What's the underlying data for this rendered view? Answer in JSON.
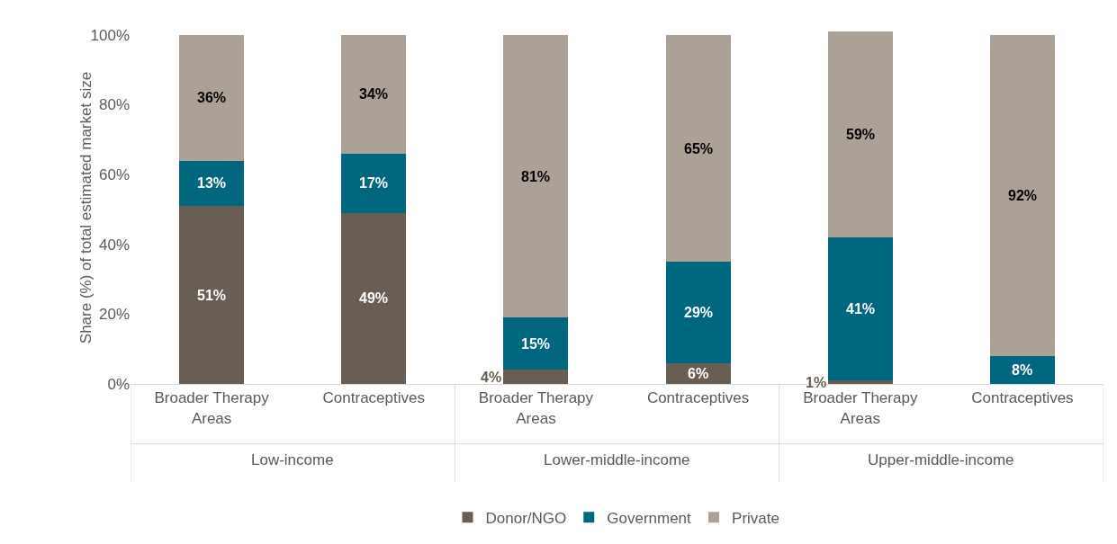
{
  "chart_data": {
    "type": "bar",
    "stacked": true,
    "ylabel": "Share (%) of total estimated market size",
    "categories": [
      "Broader Therapy Areas",
      "Contraceptives",
      "Broader Therapy Areas",
      "Contraceptives",
      "Broader Therapy Areas",
      "Contraceptives"
    ],
    "series": [
      {
        "name": "Donor/NGO",
        "color": "#695e53",
        "values": [
          51,
          49,
          4,
          6,
          1,
          0
        ],
        "value_labels": [
          "51%",
          "49%",
          "4%",
          "6%",
          "1%",
          null
        ]
      },
      {
        "name": "Government",
        "color": "#00677f",
        "values": [
          13,
          17,
          15,
          29,
          41,
          8
        ],
        "value_labels": [
          "13%",
          "17%",
          "15%",
          "29%",
          "41%",
          "8%"
        ]
      },
      {
        "name": "Private",
        "color": "#aba197",
        "values": [
          36,
          34,
          81,
          65,
          59,
          92
        ],
        "value_labels": [
          "36%",
          "34%",
          "81%",
          "65%",
          "59%",
          "92%"
        ]
      }
    ],
    "ylim": [
      0,
      101
    ],
    "yticks": [
      {
        "value": 0,
        "label": "0%"
      },
      {
        "value": 20,
        "label": "20%"
      },
      {
        "value": 40,
        "label": "40%"
      },
      {
        "value": 60,
        "label": "60%"
      },
      {
        "value": 80,
        "label": "80%"
      },
      {
        "value": 100,
        "label": "100%"
      }
    ],
    "grid": false,
    "legend": "bottom",
    "annotations": [
      "Low-income",
      "Lower-middle-income",
      "Upper-middle-income"
    ]
  }
}
